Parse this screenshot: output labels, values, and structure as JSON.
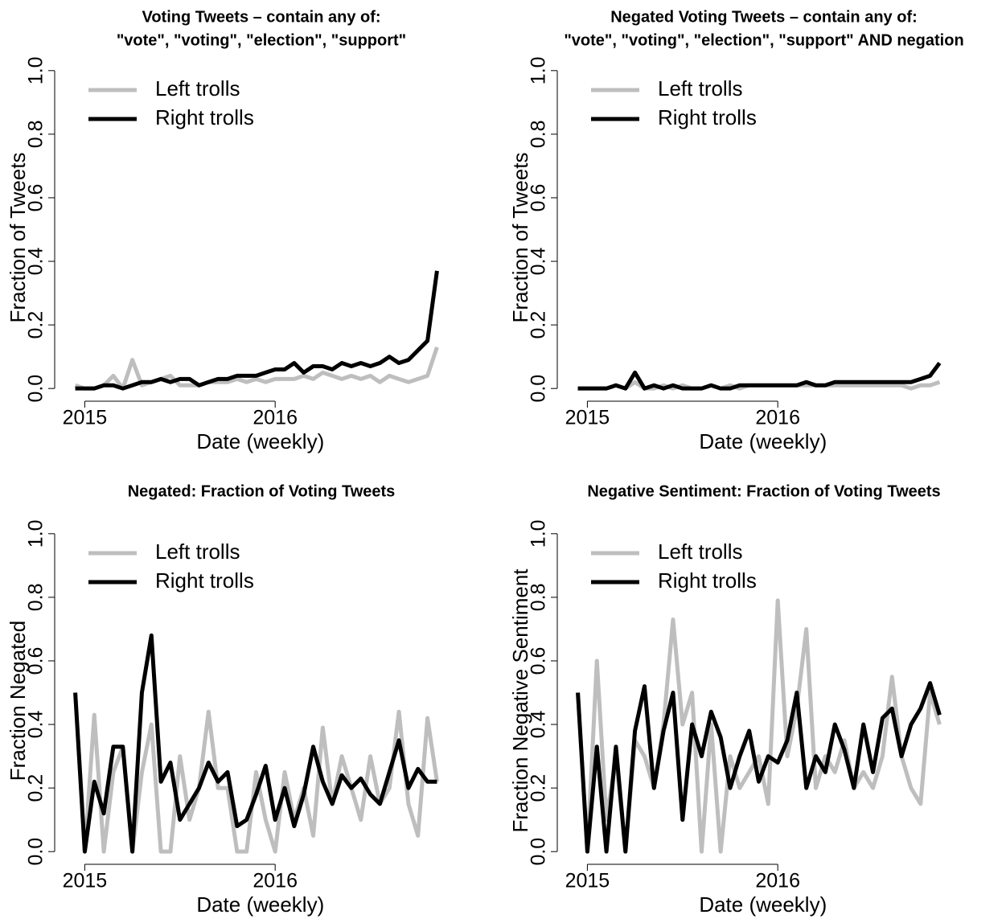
{
  "chart_data": [
    {
      "type": "line",
      "title": [
        "Voting Tweets – contain any of:",
        "\"vote\", \"voting\", \"election\", \"support\""
      ],
      "xlabel": "Date (weekly)",
      "ylabel": "Fraction of Tweets",
      "legend": "topleft",
      "x": [
        2014.95,
        2015,
        2015.05,
        2015.1,
        2015.15,
        2015.2,
        2015.25,
        2015.3,
        2015.35,
        2015.4,
        2015.45,
        2015.5,
        2015.55,
        2015.6,
        2015.65,
        2015.7,
        2015.75,
        2015.8,
        2015.85,
        2015.9,
        2015.95,
        2016,
        2016.05,
        2016.1,
        2016.15,
        2016.2,
        2016.25,
        2016.3,
        2016.35,
        2016.4,
        2016.45,
        2016.5,
        2016.55,
        2016.6,
        2016.65,
        2016.7,
        2016.75,
        2016.8,
        2016.85
      ],
      "xlim": [
        2014.88,
        2016.92
      ],
      "xticks": [
        2015,
        2016
      ],
      "ylim": [
        -0.04,
        1.04
      ],
      "yticks": [
        {
          "value": 0,
          "label": "0.0"
        },
        0.2,
        0.4,
        0.6,
        0.8,
        {
          "value": 1,
          "label": "1.0"
        }
      ],
      "series": [
        {
          "name": "Left trolls",
          "color": "#bebebe",
          "values": [
            0.01,
            0,
            0,
            0.01,
            0.04,
            0,
            0.09,
            0.01,
            0.02,
            0.03,
            0.04,
            0.01,
            0.01,
            0.01,
            0.02,
            0.02,
            0.02,
            0.03,
            0.02,
            0.03,
            0.02,
            0.03,
            0.03,
            0.03,
            0.04,
            0.03,
            0.05,
            0.04,
            0.03,
            0.04,
            0.03,
            0.04,
            0.02,
            0.04,
            0.03,
            0.02,
            0.03,
            0.04,
            0.13
          ]
        },
        {
          "name": "Right trolls",
          "color": "#000000",
          "values": [
            0,
            0,
            0,
            0.01,
            0.01,
            0,
            0.01,
            0.02,
            0.02,
            0.03,
            0.02,
            0.03,
            0.03,
            0.01,
            0.02,
            0.03,
            0.03,
            0.04,
            0.04,
            0.04,
            0.05,
            0.06,
            0.06,
            0.08,
            0.05,
            0.07,
            0.07,
            0.06,
            0.08,
            0.07,
            0.08,
            0.07,
            0.08,
            0.1,
            0.08,
            0.09,
            0.12,
            0.15,
            0.37
          ]
        }
      ]
    },
    {
      "type": "line",
      "title": [
        "Negated Voting Tweets – contain any of:",
        "\"vote\", \"voting\", \"election\", \"support\" AND negation"
      ],
      "xlabel": "Date (weekly)",
      "ylabel": "Fraction of Tweets",
      "legend": "topleft",
      "x": [
        2014.95,
        2015,
        2015.05,
        2015.1,
        2015.15,
        2015.2,
        2015.25,
        2015.3,
        2015.35,
        2015.4,
        2015.45,
        2015.5,
        2015.55,
        2015.6,
        2015.65,
        2015.7,
        2015.75,
        2015.8,
        2015.85,
        2015.9,
        2015.95,
        2016,
        2016.05,
        2016.1,
        2016.15,
        2016.2,
        2016.25,
        2016.3,
        2016.35,
        2016.4,
        2016.45,
        2016.5,
        2016.55,
        2016.6,
        2016.65,
        2016.7,
        2016.75,
        2016.8,
        2016.85
      ],
      "xlim": [
        2014.88,
        2016.92
      ],
      "xticks": [
        2015,
        2016
      ],
      "ylim": [
        -0.04,
        1.04
      ],
      "yticks": [
        {
          "value": 0,
          "label": "0.0"
        },
        0.2,
        0.4,
        0.6,
        0.8,
        {
          "value": 1,
          "label": "1.0"
        }
      ],
      "series": [
        {
          "name": "Left trolls",
          "color": "#bebebe",
          "values": [
            0,
            0,
            0,
            0,
            0.01,
            0,
            0.02,
            0,
            0,
            0.01,
            0,
            0.01,
            0,
            0,
            0.01,
            0,
            0.01,
            0,
            0.01,
            0.01,
            0.01,
            0.01,
            0.01,
            0.01,
            0.01,
            0.01,
            0.01,
            0.01,
            0.01,
            0.01,
            0.01,
            0.01,
            0.01,
            0.01,
            0.01,
            0,
            0.01,
            0.01,
            0.02
          ]
        },
        {
          "name": "Right trolls",
          "color": "#000000",
          "values": [
            0,
            0,
            0,
            0,
            0.01,
            0,
            0.05,
            0,
            0.01,
            0,
            0.01,
            0,
            0,
            0,
            0.01,
            0,
            0,
            0.01,
            0.01,
            0.01,
            0.01,
            0.01,
            0.01,
            0.01,
            0.02,
            0.01,
            0.01,
            0.02,
            0.02,
            0.02,
            0.02,
            0.02,
            0.02,
            0.02,
            0.02,
            0.02,
            0.03,
            0.04,
            0.08
          ]
        }
      ]
    },
    {
      "type": "line",
      "title": [
        "Negated: Fraction of Voting Tweets"
      ],
      "xlabel": "Date (weekly)",
      "ylabel": "Fraction Negated",
      "legend": "topleft",
      "x": [
        2014.95,
        2015,
        2015.05,
        2015.1,
        2015.15,
        2015.2,
        2015.25,
        2015.3,
        2015.35,
        2015.4,
        2015.45,
        2015.5,
        2015.55,
        2015.6,
        2015.65,
        2015.7,
        2015.75,
        2015.8,
        2015.85,
        2015.9,
        2015.95,
        2016,
        2016.05,
        2016.1,
        2016.15,
        2016.2,
        2016.25,
        2016.3,
        2016.35,
        2016.4,
        2016.45,
        2016.5,
        2016.55,
        2016.6,
        2016.65,
        2016.7,
        2016.75,
        2016.8,
        2016.85
      ],
      "xlim": [
        2014.88,
        2016.92
      ],
      "xticks": [
        2015,
        2016
      ],
      "ylim": [
        -0.04,
        1.04
      ],
      "yticks": [
        {
          "value": 0,
          "label": "0.0"
        },
        0.2,
        0.4,
        0.6,
        0.8,
        {
          "value": 1,
          "label": "1.0"
        }
      ],
      "series": [
        {
          "name": "Left trolls",
          "color": "#bebebe",
          "values": [
            0.5,
            0,
            0.43,
            0,
            0.25,
            0.33,
            0,
            0.25,
            0.4,
            0,
            0,
            0.3,
            0.1,
            0.2,
            0.44,
            0.2,
            0.2,
            0,
            0,
            0.25,
            0.1,
            0,
            0.25,
            0.1,
            0.2,
            0.05,
            0.39,
            0.15,
            0.3,
            0.2,
            0.1,
            0.3,
            0.15,
            0.2,
            0.44,
            0.15,
            0.05,
            0.42,
            0.22
          ]
        },
        {
          "name": "Right trolls",
          "color": "#000000",
          "values": [
            0.5,
            0,
            0.22,
            0.12,
            0.33,
            0.33,
            0,
            0.5,
            0.68,
            0.22,
            0.28,
            0.1,
            0.15,
            0.2,
            0.28,
            0.22,
            0.25,
            0.08,
            0.1,
            0.18,
            0.27,
            0.1,
            0.2,
            0.08,
            0.18,
            0.33,
            0.22,
            0.15,
            0.24,
            0.2,
            0.23,
            0.18,
            0.15,
            0.25,
            0.35,
            0.2,
            0.26,
            0.22,
            0.22
          ]
        }
      ]
    },
    {
      "type": "line",
      "title": [
        "Negative Sentiment: Fraction of Voting Tweets"
      ],
      "xlabel": "Date (weekly)",
      "ylabel": "Fraction Negative Sentiment",
      "legend": "topleft",
      "x": [
        2014.95,
        2015,
        2015.05,
        2015.1,
        2015.15,
        2015.2,
        2015.25,
        2015.3,
        2015.35,
        2015.4,
        2015.45,
        2015.5,
        2015.55,
        2015.6,
        2015.65,
        2015.7,
        2015.75,
        2015.8,
        2015.85,
        2015.9,
        2015.95,
        2016,
        2016.05,
        2016.1,
        2016.15,
        2016.2,
        2016.25,
        2016.3,
        2016.35,
        2016.4,
        2016.45,
        2016.5,
        2016.55,
        2016.6,
        2016.65,
        2016.7,
        2016.75,
        2016.8,
        2016.85
      ],
      "xlim": [
        2014.88,
        2016.92
      ],
      "xticks": [
        2015,
        2016
      ],
      "ylim": [
        -0.04,
        1.04
      ],
      "yticks": [
        {
          "value": 0,
          "label": "0.0"
        },
        0.2,
        0.4,
        0.6,
        0.8,
        {
          "value": 1,
          "label": "1.0"
        }
      ],
      "series": [
        {
          "name": "Left trolls",
          "color": "#bebebe",
          "values": [
            0.5,
            0,
            0.6,
            0.1,
            0.3,
            0,
            0.35,
            0.3,
            0.2,
            0.4,
            0.73,
            0.4,
            0.5,
            0,
            0.4,
            0,
            0.3,
            0.2,
            0.25,
            0.3,
            0.15,
            0.79,
            0.3,
            0.45,
            0.7,
            0.2,
            0.3,
            0.25,
            0.35,
            0.2,
            0.25,
            0.2,
            0.3,
            0.55,
            0.3,
            0.2,
            0.15,
            0.5,
            0.4
          ]
        },
        {
          "name": "Right trolls",
          "color": "#000000",
          "values": [
            0.5,
            0,
            0.33,
            0,
            0.33,
            0,
            0.38,
            0.52,
            0.2,
            0.38,
            0.5,
            0.1,
            0.4,
            0.3,
            0.44,
            0.36,
            0.2,
            0.3,
            0.38,
            0.22,
            0.3,
            0.28,
            0.35,
            0.5,
            0.2,
            0.3,
            0.25,
            0.4,
            0.32,
            0.2,
            0.4,
            0.25,
            0.42,
            0.45,
            0.3,
            0.4,
            0.45,
            0.53,
            0.43
          ]
        }
      ]
    }
  ]
}
